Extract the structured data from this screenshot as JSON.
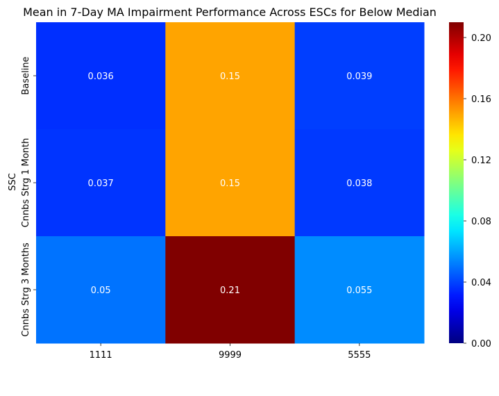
{
  "chart_data": {
    "type": "heatmap",
    "title": "Mean in 7-Day MA Impairment Performance Across ESCs for Below Median",
    "xlabel": "",
    "ylabel": "SSC",
    "x_categories": [
      "1111",
      "9999",
      "5555"
    ],
    "y_categories": [
      "Baseline",
      "Cnnbs Strg 1 Month",
      "Cnnbs Strg 3 Months"
    ],
    "values": [
      [
        0.036,
        0.15,
        0.039
      ],
      [
        0.037,
        0.15,
        0.038
      ],
      [
        0.05,
        0.21,
        0.055
      ]
    ],
    "annotations": [
      [
        "0.036",
        "0.15",
        "0.039"
      ],
      [
        "0.037",
        "0.15",
        "0.038"
      ],
      [
        "0.05",
        "0.21",
        "0.055"
      ]
    ],
    "colormap": "jet",
    "colorbar": {
      "range": [
        0,
        0.21
      ],
      "ticks": [
        0.0,
        0.04,
        0.08,
        0.12,
        0.16,
        0.2
      ],
      "tick_labels": [
        "0.00",
        "0.04",
        "0.08",
        "0.12",
        "0.16",
        "0.20"
      ]
    },
    "grid": false,
    "legend": "colorbar-right"
  },
  "colors": {
    "text_dark": "#000000",
    "text_light": "#ffffff"
  }
}
